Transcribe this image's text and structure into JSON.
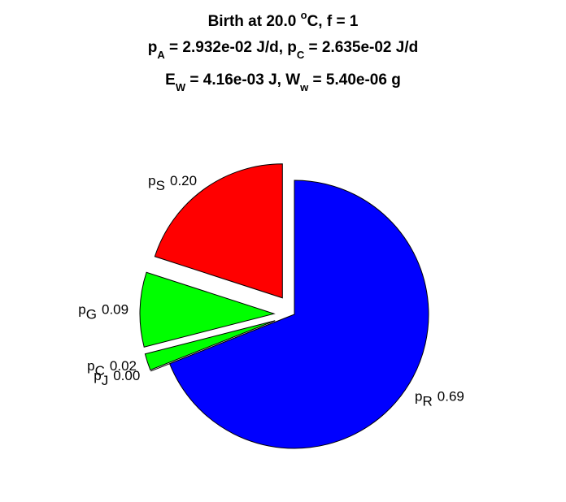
{
  "chart_data": {
    "type": "pie",
    "title": [
      [
        {
          "text": "Birth at 20.0 "
        },
        {
          "text": "o",
          "shift": "sup"
        },
        {
          "text": "C, f = 1"
        }
      ],
      [
        {
          "text": "p"
        },
        {
          "text": "A",
          "shift": "sub"
        },
        {
          "text": " = 2.932e-02 J/d, p"
        },
        {
          "text": "C",
          "shift": "sub"
        },
        {
          "text": " = 2.635e-02 J/d"
        }
      ],
      [
        {
          "text": "E"
        },
        {
          "text": "W",
          "shift": "sub"
        },
        {
          "text": " = 4.16e-03 J, W"
        },
        {
          "text": "w",
          "shift": "sub"
        },
        {
          "text": " = 5.40e-06 g"
        }
      ]
    ],
    "categories": [
      {
        "text": "p",
        "sub": "S"
      },
      {
        "text": "p",
        "sub": "G"
      },
      {
        "text": "p",
        "sub": "C"
      },
      {
        "text": "p",
        "sub": "J"
      },
      {
        "text": "p",
        "sub": "R"
      }
    ],
    "values": [
      0.2,
      0.09,
      0.02,
      0.0,
      0.69
    ],
    "value_labels": [
      "0.20",
      "0.09",
      "0.02",
      "0.00",
      "0.69"
    ],
    "colors": [
      "#ff0000",
      "#00ff00",
      "#00ff00",
      "#00ff00",
      "#0000ff"
    ],
    "explode": [
      true,
      true,
      true,
      true,
      false
    ]
  }
}
